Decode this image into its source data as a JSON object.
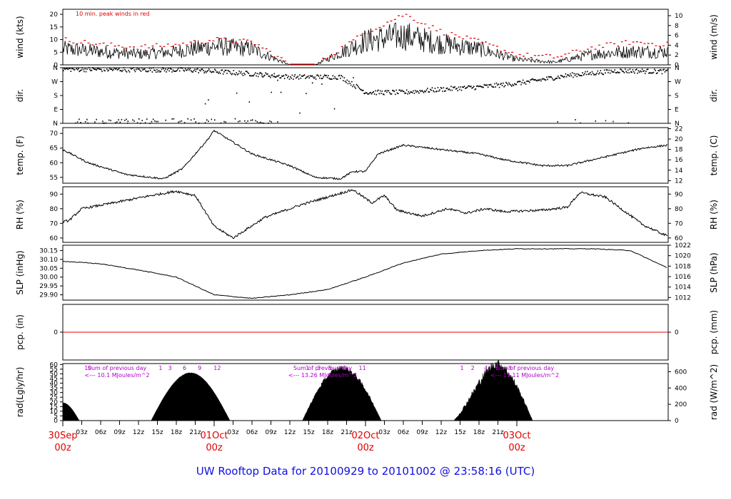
{
  "colors": {
    "accent_red": "#e00000",
    "purple": "#b000c8",
    "title_blue": "#1010e0"
  },
  "title": "UW Rooftop Data for 20100929  to  20101002 @ 23:58:16  (UTC)",
  "wind_note": "10 min. peak winds in red",
  "days": [
    {
      "label": "30Sep",
      "hour": "00z"
    },
    {
      "label": "01Oct",
      "hour": "00z"
    },
    {
      "label": "02Oct",
      "hour": "00z"
    },
    {
      "label": "03Oct",
      "hour": "00z"
    }
  ],
  "hour_ticks": [
    "03z",
    "06z",
    "09z",
    "12z",
    "15z",
    "18z",
    "21z"
  ],
  "sun_hours": [
    [
      "10"
    ],
    [
      "1",
      "3",
      "6",
      "9",
      "12"
    ],
    [
      "1",
      "3",
      "5",
      "8",
      "11"
    ],
    [
      "1",
      "2",
      "4",
      "6",
      "8"
    ]
  ],
  "rad_notes": [
    {
      "line1": "Sum of previous day",
      "line2": "<--- 10.1 MJoules/m^2"
    },
    {
      "line1": "Sum of previous day",
      "line2": "<--- 13.26 MJoules/m^2"
    },
    {
      "line1": "Sum of previous day",
      "line2": "<--- 11.11 MJoules/m^2"
    }
  ],
  "chart_data": [
    {
      "id": "wind",
      "type": "line",
      "ylabel_left": "wind (kts)",
      "ylabel_right": "wind (m/s)",
      "left_ticks": [
        "0",
        "5",
        "10",
        "15",
        "20"
      ],
      "right_ticks": [
        "0",
        "2",
        "4",
        "6",
        "8",
        "10"
      ],
      "ylim_left": [
        0,
        22
      ],
      "ylim_right": [
        0,
        11.3
      ],
      "series_points_hours": [
        0,
        6,
        12,
        18,
        24,
        30,
        36,
        40,
        48,
        54,
        60,
        66,
        72,
        78,
        84,
        90,
        96
      ],
      "sustained_kts": [
        6,
        5,
        4,
        5,
        7,
        6,
        0,
        0,
        9,
        11,
        8,
        6,
        2,
        1,
        4,
        5,
        5
      ],
      "peak_kts": [
        10,
        8,
        7,
        8,
        10,
        9,
        0,
        0,
        13,
        20,
        13,
        9,
        4,
        3,
        7,
        9,
        8
      ]
    },
    {
      "id": "dir",
      "type": "scatter",
      "ylabel_left": "dir.",
      "ylabel_right": "dir.",
      "left_ticks": [
        "N",
        "E",
        "S",
        "W",
        "N"
      ],
      "right_ticks": [
        "N",
        "E",
        "S",
        "W",
        "N"
      ],
      "ylim": [
        0,
        360
      ]
    },
    {
      "id": "temp",
      "type": "line",
      "ylabel_left": "temp. (F)",
      "ylabel_right": "temp. (C)",
      "left_ticks": [
        "55",
        "60",
        "65",
        "70"
      ],
      "right_ticks": [
        "12",
        "14",
        "16",
        "18",
        "20",
        "22"
      ],
      "ylim_left": [
        53,
        72
      ],
      "ylim_right": [
        11.5,
        22.2
      ],
      "x_hours": [
        0,
        4,
        10,
        16,
        19,
        23,
        24,
        30,
        36,
        40,
        44,
        46,
        48,
        50,
        54,
        60,
        66,
        70,
        76,
        80,
        84,
        88,
        92,
        96
      ],
      "values_f": [
        64.5,
        60,
        56,
        54.5,
        58,
        68,
        71,
        63,
        59,
        55,
        54.5,
        57,
        57,
        63,
        66,
        64.5,
        63,
        61,
        59,
        59,
        61,
        63,
        65,
        66
      ]
    },
    {
      "id": "rh",
      "type": "line",
      "ylabel_left": "RH (%)",
      "ylabel_right": "RH (%)",
      "left_ticks": [
        "60",
        "70",
        "80",
        "90"
      ],
      "right_ticks": [
        "60",
        "70",
        "80",
        "90"
      ],
      "ylim": [
        57,
        95
      ],
      "x_hours": [
        0,
        1,
        3,
        8,
        14,
        18,
        21,
        24,
        27,
        32,
        38,
        46,
        49,
        51,
        53,
        57,
        61,
        64,
        67,
        70,
        76,
        80,
        82,
        86,
        92,
        96
      ],
      "values": [
        71,
        72,
        80,
        84,
        89,
        92,
        89,
        68,
        60,
        74,
        83,
        93,
        84,
        89,
        79,
        75,
        80,
        77,
        80,
        78,
        79,
        81,
        91,
        88,
        69,
        61
      ]
    },
    {
      "id": "slp",
      "type": "line",
      "ylabel_left": "SLP (inHg)",
      "ylabel_right": "SLP (hPa)",
      "left_ticks": [
        "29.90",
        "29.95",
        "30.00",
        "30.05",
        "30.10",
        "30.15"
      ],
      "right_ticks": [
        "1012",
        "1014",
        "1016",
        "1018",
        "1020",
        "1022"
      ],
      "ylim_left": [
        29.87,
        30.18
      ],
      "ylim_right": [
        1011.5,
        1022.0
      ],
      "x_hours": [
        0,
        6,
        12,
        18,
        24,
        30,
        36,
        42,
        48,
        54,
        60,
        66,
        72,
        78,
        84,
        90,
        96
      ],
      "values_inhg": [
        30.09,
        30.075,
        30.04,
        30.0,
        29.9,
        29.88,
        29.9,
        29.93,
        30.0,
        30.08,
        30.13,
        30.15,
        30.16,
        30.16,
        30.16,
        30.15,
        30.05
      ]
    },
    {
      "id": "pcp",
      "type": "line",
      "ylabel_left": "pcp. (in)",
      "ylabel_right": "pcp. (mm)",
      "left_ticks": [
        "0"
      ],
      "right_ticks": [
        "0"
      ],
      "value": 0
    },
    {
      "id": "rad",
      "type": "area",
      "ylabel_left": "rad(Lgly/hr)",
      "ylabel_right": "rad (W/m^2)",
      "left_ticks": [
        "0",
        "5",
        "10",
        "15",
        "20",
        "25",
        "30",
        "35",
        "40",
        "45",
        "50",
        "55",
        "60"
      ],
      "right_ticks": [
        "0",
        "200",
        "400",
        "600"
      ],
      "ylim_left": [
        0,
        61
      ],
      "ylim_right": [
        0,
        700
      ],
      "daily_peaks_lgly": [
        19,
        51,
        56,
        62
      ]
    }
  ]
}
